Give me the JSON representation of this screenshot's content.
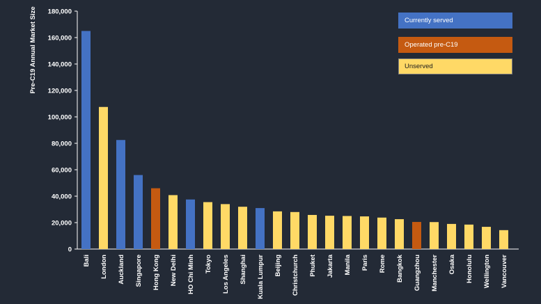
{
  "chart_data": {
    "type": "bar",
    "title": "",
    "xlabel": "",
    "ylabel": "Pre-C19 Annual Market Size",
    "ylim": [
      0,
      180000
    ],
    "yticks": [
      0,
      20000,
      40000,
      60000,
      80000,
      100000,
      120000,
      140000,
      160000,
      180000
    ],
    "ytick_labels": [
      "0",
      "20,000",
      "40,000",
      "60,000",
      "80,000",
      "100,000",
      "120,000",
      "140,000",
      "160,000",
      "180,000"
    ],
    "grid": false,
    "legend_position": "top-right",
    "categories": [
      "Bali",
      "London",
      "Auckland",
      "Singapore",
      "Hong Kong",
      "New Delhi",
      "HO Chi Minh",
      "Tokyo",
      "Los Angeles",
      "Shanghai",
      "Kuala Lumpur",
      "Beijing",
      "Christchurch",
      "Phuket",
      "Jakarta",
      "Manila",
      "Paris",
      "Rome",
      "Bangkok",
      "Guangzhou",
      "Manchester",
      "Osaka",
      "Honolulu",
      "Wellington",
      "Vancouver"
    ],
    "values": [
      165000,
      107500,
      82500,
      56000,
      46000,
      40800,
      37500,
      35500,
      34000,
      32000,
      31000,
      28500,
      28000,
      25800,
      25200,
      25000,
      24700,
      23800,
      22600,
      20500,
      20400,
      19000,
      18500,
      16800,
      14300
    ],
    "status": [
      "served",
      "unserved",
      "served",
      "served",
      "pre",
      "unserved",
      "served",
      "unserved",
      "unserved",
      "unserved",
      "served",
      "unserved",
      "unserved",
      "unserved",
      "unserved",
      "unserved",
      "unserved",
      "unserved",
      "unserved",
      "pre",
      "unserved",
      "unserved",
      "unserved",
      "unserved",
      "unserved"
    ],
    "legend": [
      {
        "key": "served",
        "label": "Currently served",
        "color": "#4472c4",
        "text_color": "#ffffff"
      },
      {
        "key": "pre",
        "label": "Operated pre-C19",
        "color": "#c55a11",
        "text_color": "#ffffff"
      },
      {
        "key": "unserved",
        "label": "Unserved",
        "color": "#ffd966",
        "text_color": "#1a1a1a"
      }
    ]
  },
  "colors": {
    "background": "#232a36",
    "text": "#ffffff",
    "axis": "#ffffff"
  }
}
